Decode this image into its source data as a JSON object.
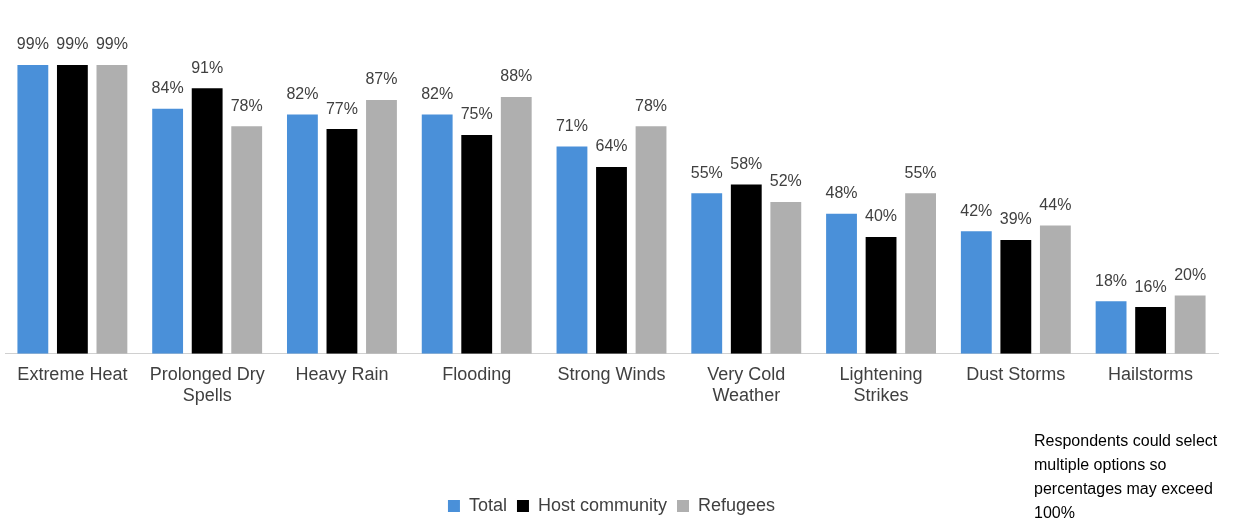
{
  "chart_data": {
    "type": "bar",
    "categories": [
      "Extreme Heat",
      "Prolonged Dry Spells",
      "Heavy Rain",
      "Flooding",
      "Strong Winds",
      "Very Cold Weather",
      "Lightening Strikes",
      "Dust Storms",
      "Hailstorms"
    ],
    "series": [
      {
        "name": "Total",
        "color": "#4a90d9",
        "values": [
          99,
          84,
          82,
          82,
          71,
          55,
          48,
          42,
          18
        ],
        "value_labels": [
          "99%",
          "84%",
          "82%",
          "82%",
          "71%",
          "55%",
          "48%",
          "42%",
          "18%"
        ]
      },
      {
        "name": "Host community",
        "color": "#000000",
        "values": [
          99,
          91,
          77,
          75,
          64,
          58,
          40,
          39,
          16
        ],
        "value_labels": [
          "99%",
          "91%",
          "77%",
          "75%",
          "64%",
          "58%",
          "40%",
          "39%",
          "16%"
        ]
      },
      {
        "name": "Refugees",
        "color": "#afafaf",
        "values": [
          99,
          78,
          87,
          88,
          78,
          52,
          55,
          44,
          20
        ],
        "value_labels": [
          "99%",
          "78%",
          "87%",
          "88%",
          "78%",
          "52%",
          "55%",
          "44%",
          "20%"
        ]
      }
    ],
    "tick_labels": "x",
    "grid": false,
    "legend": "bottom",
    "annotations": [
      "Respondents could select multiple options so percentages may exceed 100%"
    ]
  }
}
